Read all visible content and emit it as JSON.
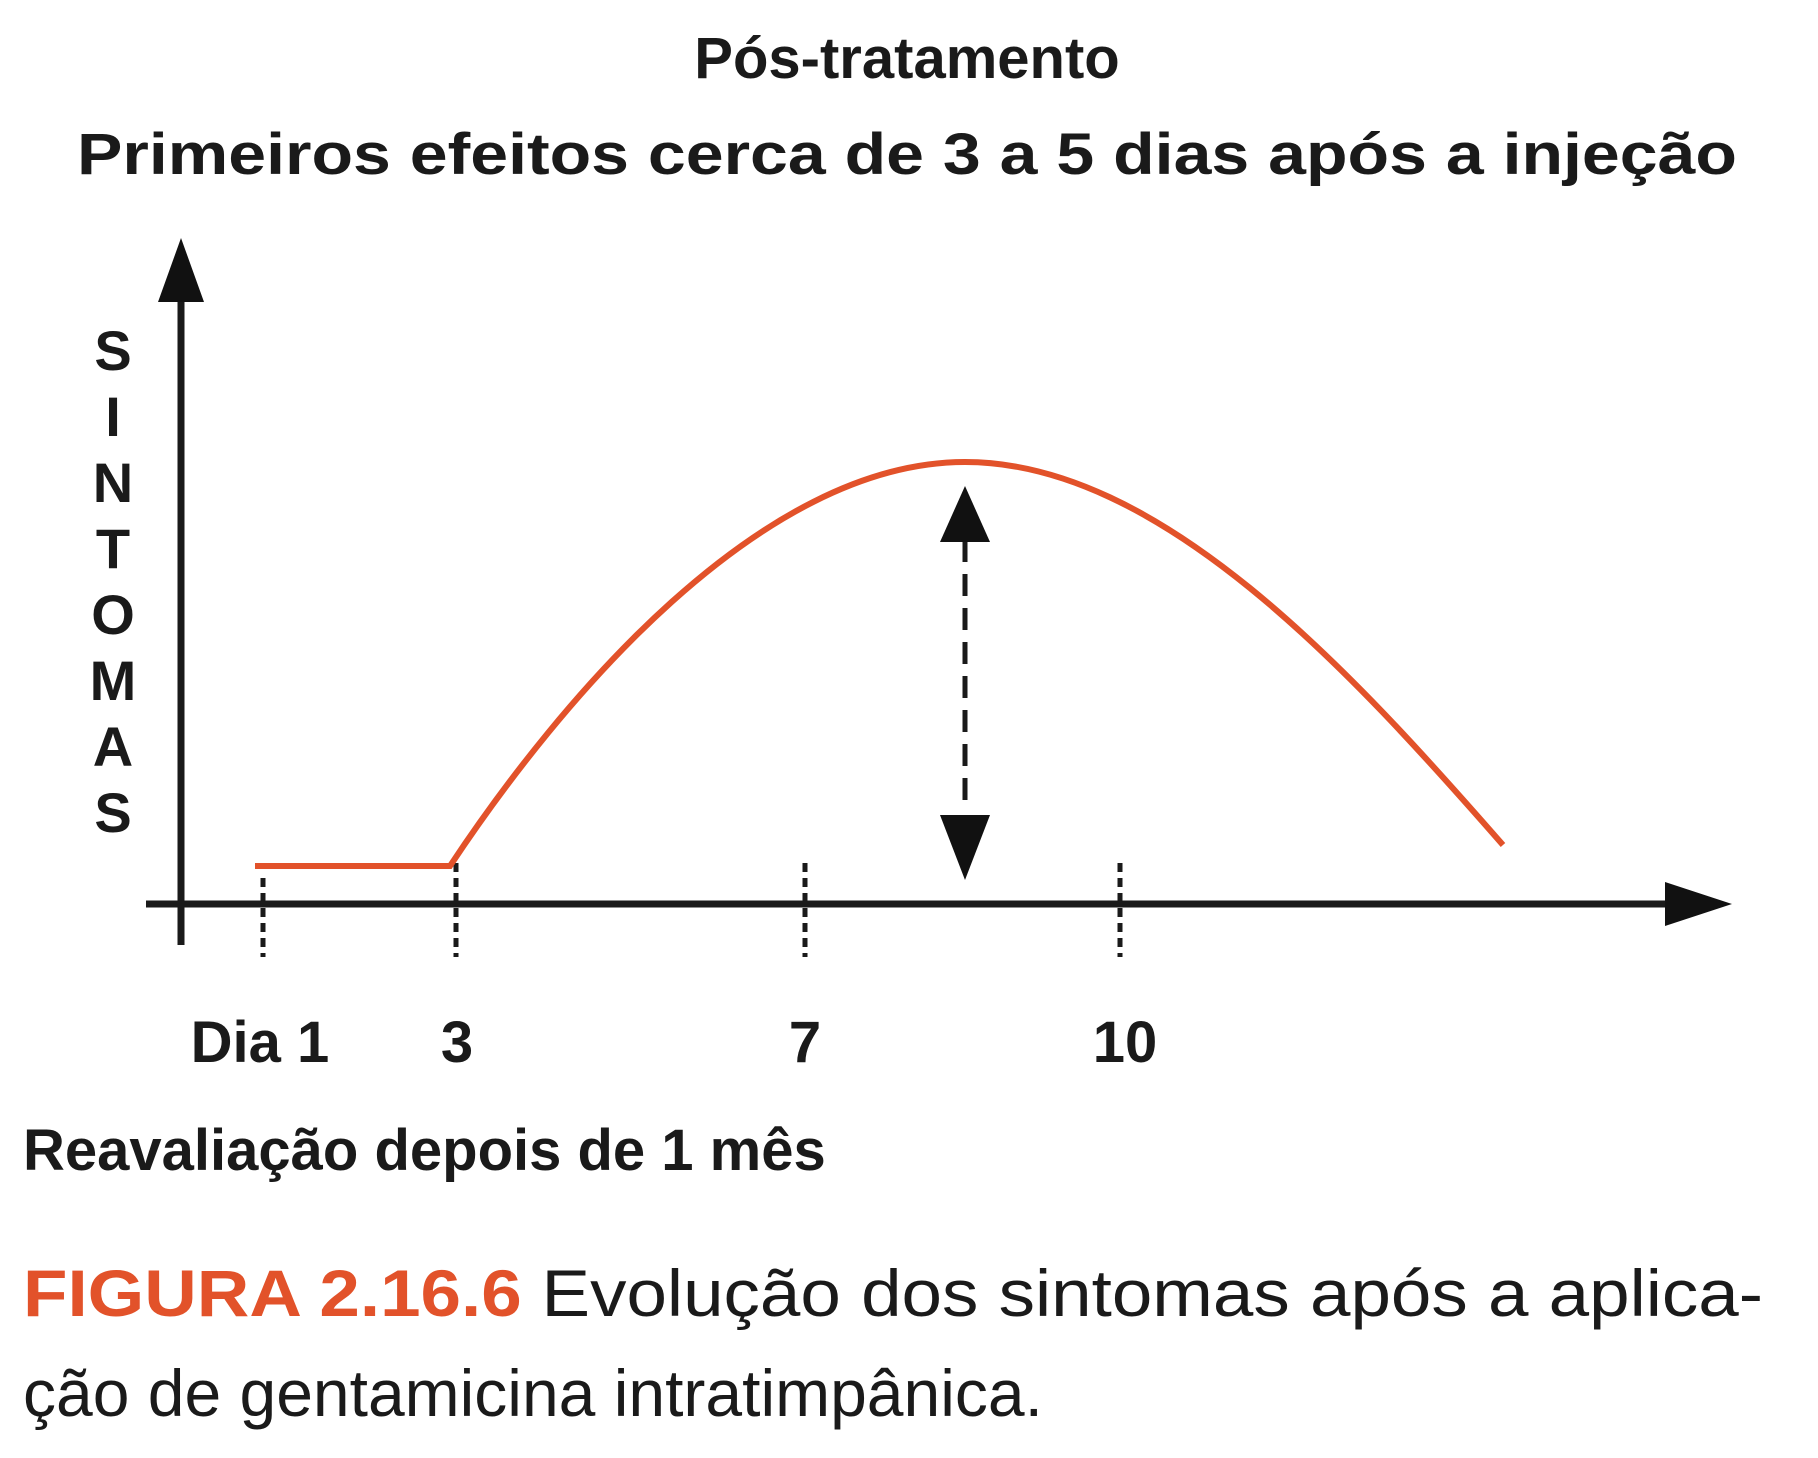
{
  "header": {
    "title": "Pós-tratamento",
    "subtitle": "Primeiros efeitos cerca de 3 a 5 dias após a injeção"
  },
  "diagram": {
    "y_axis_label": [
      "S",
      "I",
      "N",
      "T",
      "O",
      "M",
      "A",
      "S"
    ],
    "x_labels": [
      "Dia 1",
      "3",
      "7",
      "10"
    ],
    "note": "Reavaliação depois de 1 mês"
  },
  "caption": {
    "label": "FIGURA 2.16.6",
    "lines": [
      "Evolução dos sintomas após a aplica-",
      "ção de gentamicina intratimpânica."
    ]
  }
}
